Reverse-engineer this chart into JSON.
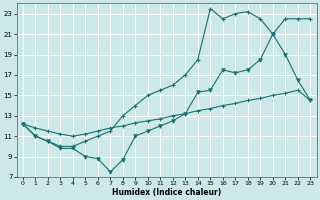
{
  "xlabel": "Humidex (Indice chaleur)",
  "bg_color": "#cce8e8",
  "grid_color": "#ffffff",
  "line_color": "#1a7070",
  "xlim": [
    -0.5,
    23.5
  ],
  "ylim": [
    7,
    24
  ],
  "xticks": [
    0,
    1,
    2,
    3,
    4,
    5,
    6,
    7,
    8,
    9,
    10,
    11,
    12,
    13,
    14,
    15,
    16,
    17,
    18,
    19,
    20,
    21,
    22,
    23
  ],
  "yticks": [
    7,
    9,
    11,
    13,
    15,
    17,
    19,
    21,
    23
  ],
  "line_upper_x": [
    0,
    1,
    2,
    3,
    4,
    5,
    6,
    7,
    8,
    9,
    10,
    11,
    12,
    13,
    14,
    15,
    16,
    17,
    18,
    19,
    20,
    21,
    22,
    23
  ],
  "line_upper_y": [
    12.2,
    11.8,
    11.5,
    11.2,
    11.0,
    11.2,
    11.5,
    11.8,
    12.0,
    12.3,
    12.5,
    12.7,
    13.0,
    13.2,
    13.5,
    13.7,
    14.0,
    14.2,
    14.5,
    14.7,
    15.0,
    15.2,
    15.5,
    14.5
  ],
  "line_peak_x": [
    0,
    1,
    2,
    3,
    4,
    5,
    6,
    7,
    8,
    9,
    10,
    11,
    12,
    13,
    14,
    15,
    16,
    17,
    18,
    19,
    20,
    21,
    22,
    23
  ],
  "line_peak_y": [
    12.2,
    11.0,
    10.5,
    10.0,
    10.0,
    10.5,
    11.0,
    11.5,
    13.0,
    14.0,
    15.0,
    15.5,
    16.0,
    17.0,
    18.5,
    23.5,
    22.5,
    23.0,
    23.2,
    22.5,
    21.0,
    22.5,
    22.5,
    22.5
  ],
  "line_jagged_x": [
    0,
    1,
    2,
    3,
    4,
    5,
    6,
    7,
    8,
    9,
    10,
    11,
    12,
    13,
    14,
    15,
    16,
    17,
    18,
    19,
    20,
    21,
    22,
    23
  ],
  "line_jagged_y": [
    12.2,
    11.0,
    10.5,
    9.8,
    9.8,
    9.0,
    8.8,
    7.5,
    8.7,
    11.0,
    11.5,
    12.0,
    12.5,
    13.2,
    15.3,
    15.5,
    17.5,
    17.2,
    17.5,
    18.5,
    21.0,
    19.0,
    16.5,
    14.5
  ]
}
